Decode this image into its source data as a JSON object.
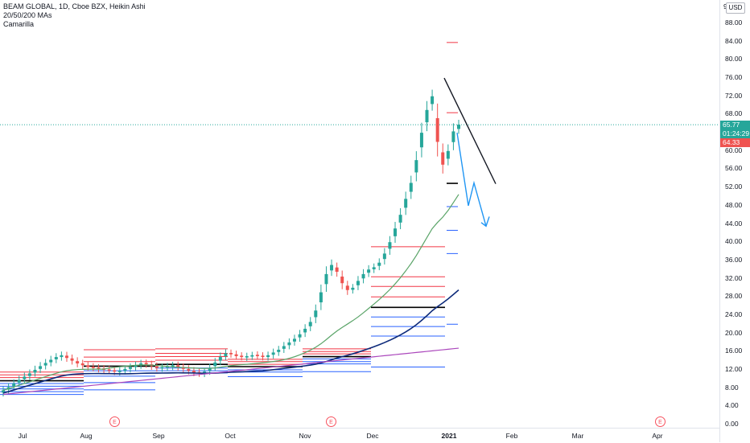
{
  "legend": {
    "title": "BEAM GLOBAL, 1D, Cboe BZX, Heikin Ashi",
    "ma_label": "20/50/200 MAs",
    "pivot_label": "Camarilla"
  },
  "price_axis": {
    "currency_button": "USD",
    "top_value": "9",
    "ticks": [
      "88.00",
      "84.00",
      "80.00",
      "76.00",
      "72.00",
      "68.00",
      "60.00",
      "56.00",
      "52.00",
      "48.00",
      "44.00",
      "40.00",
      "36.00",
      "32.00",
      "28.00",
      "24.00",
      "20.00",
      "16.00",
      "12.00",
      "8.00",
      "4.00",
      "0.00"
    ],
    "tags": [
      {
        "text": "65.77",
        "color": "#26a69a"
      },
      {
        "text": "01:24:29",
        "color": "#26a69a"
      },
      {
        "text": "64.33",
        "color": "#ef5350"
      }
    ]
  },
  "time_axis": {
    "labels": [
      "Jul",
      "Aug",
      "Sep",
      "Oct",
      "Nov",
      "Dec",
      "2021",
      "Feb",
      "Mar",
      "Apr"
    ]
  },
  "earnings_markers": [
    "E",
    "E",
    "E"
  ],
  "colors": {
    "up": "#26a69a",
    "down": "#ef5350",
    "ma20": "#5aa468",
    "ma50": "#0d2a7a",
    "ma200": "#ab47bc",
    "pivot_red": "#f23645",
    "pivot_blue": "#2962ff",
    "arrow_blue": "#2196f3"
  },
  "chart_data": {
    "type": "candlestick",
    "title": "BEAM GLOBAL, 1D, Cboe BZX, Heikin Ashi",
    "ylim": [
      0,
      92
    ],
    "x_labels": [
      "Jul",
      "Aug",
      "Sep",
      "Oct",
      "Nov",
      "Dec",
      "2021",
      "Feb",
      "Mar",
      "Apr"
    ],
    "last_price": 65.77,
    "prev_close_tag": 64.33,
    "countdown": "01:24:29",
    "closes": [
      7.5,
      8.2,
      9.0,
      9.8,
      10.5,
      11.2,
      12.0,
      12.8,
      13.5,
      14.2,
      14.8,
      15.2,
      14.6,
      14.0,
      13.4,
      13.0,
      12.6,
      12.4,
      12.2,
      12.0,
      11.8,
      11.6,
      11.8,
      12.2,
      12.6,
      13.0,
      13.4,
      13.2,
      12.8,
      12.4,
      12.6,
      12.8,
      13.0,
      12.6,
      12.2,
      11.8,
      11.4,
      11.2,
      11.6,
      12.4,
      13.6,
      14.8,
      15.6,
      15.4,
      15.0,
      14.8,
      15.0,
      15.2,
      15.0,
      14.8,
      15.2,
      15.8,
      16.4,
      17.2,
      18.0,
      18.8,
      19.8,
      21.0,
      22.5,
      25.0,
      29.0,
      33.0,
      35.0,
      33.5,
      31.0,
      29.5,
      30.0,
      31.5,
      33.0,
      34.0,
      34.5,
      35.5,
      37.5,
      40.0,
      43.0,
      46.0,
      49.5,
      53.0,
      58.0,
      64.0,
      69.0,
      72.0,
      62.0,
      57.0,
      60.0,
      64.3,
      65.77
    ]
  }
}
